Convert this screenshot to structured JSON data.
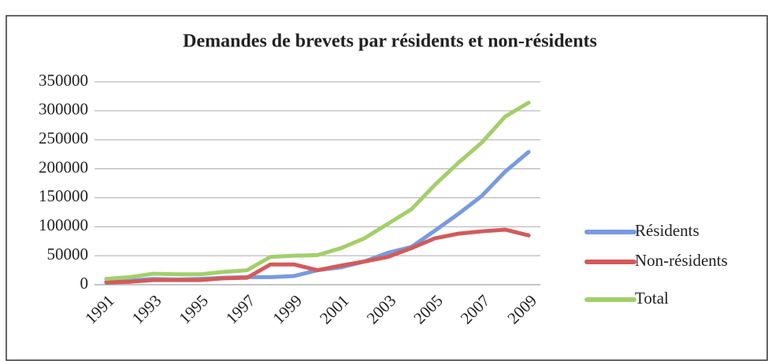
{
  "chart_data": {
    "type": "line",
    "title": "Demandes de brevets par résidents et non-résidents",
    "categories": [
      "1991",
      null,
      "1993",
      null,
      "1995",
      null,
      "1997",
      null,
      "1999",
      null,
      "2001",
      null,
      "2003",
      null,
      "2005",
      null,
      "2007",
      null,
      "2009"
    ],
    "series": [
      {
        "name": "Résidents",
        "color": "#779be1",
        "values": [
          5000,
          7000,
          10000,
          9000,
          10000,
          12000,
          13000,
          13000,
          15000,
          25000,
          30000,
          40000,
          55000,
          65000,
          93000,
          122000,
          153000,
          195000,
          229000
        ]
      },
      {
        "name": "Non-résidents",
        "color": "#d45a5a",
        "values": [
          4000,
          5000,
          8000,
          8000,
          8000,
          11000,
          12000,
          35000,
          35000,
          25000,
          33000,
          40000,
          48000,
          63000,
          80000,
          88000,
          92000,
          95000,
          85000
        ]
      },
      {
        "name": "Total",
        "color": "#a3cf6a",
        "values": [
          10000,
          13000,
          19000,
          18000,
          18000,
          22000,
          25000,
          48000,
          50000,
          51000,
          63000,
          80000,
          105000,
          130000,
          172000,
          210000,
          245000,
          290000,
          314000
        ]
      }
    ],
    "ylim": [
      0,
      350000
    ],
    "yticks": [
      0,
      50000,
      100000,
      150000,
      200000,
      250000,
      300000,
      350000
    ],
    "grid": true,
    "legend": "right"
  }
}
